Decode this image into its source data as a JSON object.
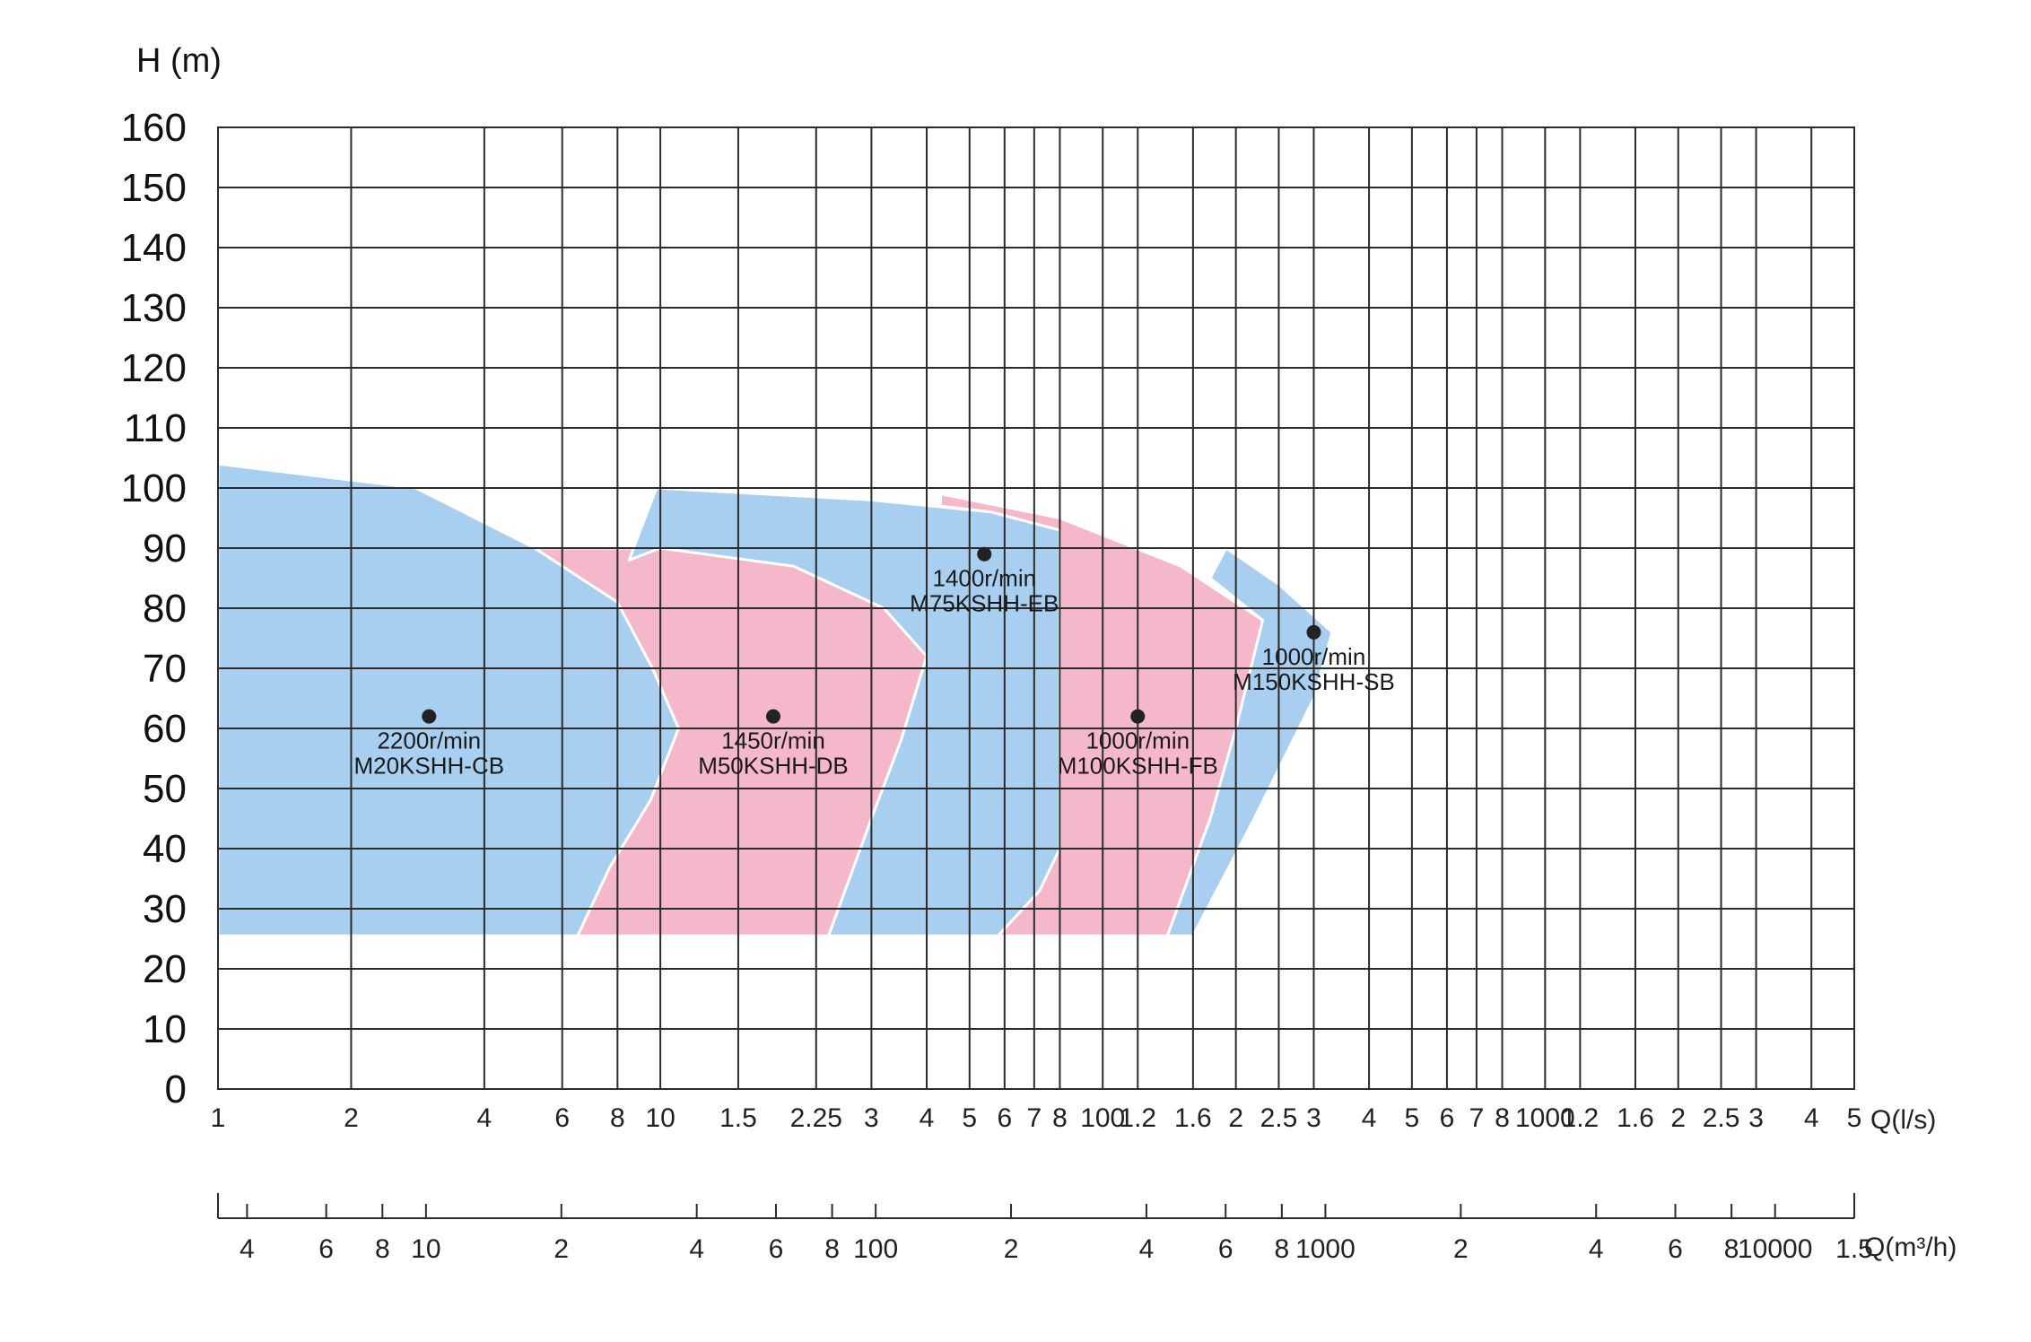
{
  "chart_data": {
    "type": "area",
    "ylabel": "H (m)",
    "ylim": [
      0,
      160
    ],
    "yticks": [
      "0",
      "10",
      "20",
      "30",
      "40",
      "50",
      "60",
      "70",
      "80",
      "90",
      "100",
      "110",
      "120",
      "130",
      "140",
      "150",
      "160"
    ],
    "x_flow_label": "Q(l/s)",
    "x_flow_ticks": [
      "1",
      "2",
      "4",
      "6",
      "8",
      "10",
      "1.5",
      "2.25",
      "3",
      "4",
      "5",
      "6",
      "7",
      "8",
      "100",
      "1.2",
      "1.6",
      "2",
      "2.5",
      "3",
      "4",
      "5",
      "6",
      "7",
      "8",
      "1000",
      "1.2",
      "1.6",
      "2",
      "2.5",
      "3",
      "4",
      "5"
    ],
    "x_flow_values": [
      1,
      2,
      4,
      6,
      8,
      10,
      15,
      22.5,
      30,
      40,
      50,
      60,
      70,
      80,
      100,
      120,
      160,
      200,
      250,
      300,
      400,
      500,
      600,
      700,
      800,
      1000,
      1200,
      1600,
      2000,
      2500,
      3000,
      4000,
      5000
    ],
    "x_hour_label": "Q(m³/h)",
    "x_hour_ticks": [
      "4",
      "6",
      "8",
      "10",
      "2",
      "4",
      "6",
      "8",
      "100",
      "2",
      "4",
      "6",
      "8",
      "1000",
      "2",
      "4",
      "6",
      "8",
      "10000",
      "1.5"
    ],
    "x_hour_values": [
      4,
      6,
      8,
      10,
      20,
      40,
      60,
      80,
      100,
      200,
      400,
      600,
      800,
      1000,
      2000,
      4000,
      6000,
      8000,
      10000,
      15000
    ],
    "series": [
      {
        "speed": "2200r/min",
        "model": "M20KSHH-CB",
        "color": "#a8cfef",
        "point": {
          "x": 3,
          "y": 62
        },
        "outline": [
          [
            1,
            104
          ],
          [
            2.8,
            100
          ],
          [
            5.2,
            90
          ],
          [
            8,
            81
          ],
          [
            9.6,
            70
          ],
          [
            11,
            60
          ],
          [
            9.5,
            48
          ],
          [
            7.7,
            37
          ],
          [
            6.5,
            25.5
          ],
          [
            1,
            25.5
          ]
        ]
      },
      {
        "speed": "1450r/min",
        "model": "M50KSHH-DB",
        "color": "#f4b8ca",
        "point": {
          "x": 18,
          "y": 62
        },
        "outline": [
          [
            5.2,
            90
          ],
          [
            10,
            90
          ],
          [
            20,
            87
          ],
          [
            32,
            80
          ],
          [
            40,
            72
          ],
          [
            35,
            58
          ],
          [
            30,
            45
          ],
          [
            24,
            25.5
          ],
          [
            6.5,
            25.5
          ],
          [
            7.7,
            37
          ],
          [
            9.5,
            48
          ],
          [
            11,
            60
          ],
          [
            9.6,
            70
          ],
          [
            8,
            81
          ]
        ]
      },
      {
        "speed": "1400r/min",
        "model": "M75KSHH-EB",
        "color": "#a8cfef",
        "point": {
          "x": 54,
          "y": 89
        },
        "outline": [
          [
            8.5,
            88
          ],
          [
            9.8,
            100
          ],
          [
            30,
            98
          ],
          [
            56,
            96
          ],
          [
            80,
            93
          ],
          [
            80,
            40
          ],
          [
            72,
            33
          ],
          [
            58,
            25.5
          ],
          [
            24,
            25.5
          ],
          [
            30,
            45
          ],
          [
            35,
            58
          ],
          [
            40,
            72
          ],
          [
            32,
            80
          ],
          [
            20,
            87
          ],
          [
            10,
            90
          ]
        ]
      },
      {
        "speed": "1000r/min",
        "model": "M100KSHH-FB",
        "color": "#f4b8ca",
        "point": {
          "x": 120,
          "y": 62
        },
        "outline": [
          [
            43,
            99
          ],
          [
            80,
            95
          ],
          [
            150,
            87
          ],
          [
            230,
            78
          ],
          [
            200,
            60
          ],
          [
            175,
            45
          ],
          [
            140,
            25.5
          ],
          [
            58,
            25.5
          ],
          [
            72,
            33
          ],
          [
            80,
            40
          ],
          [
            80,
            93
          ],
          [
            56,
            96
          ],
          [
            43,
            97
          ]
        ]
      },
      {
        "speed": "1000r/min",
        "model": "M150KSHH-SB",
        "color": "#a8cfef",
        "point": {
          "x": 300,
          "y": 76
        },
        "outline": [
          [
            175,
            85
          ],
          [
            190,
            90
          ],
          [
            250,
            84
          ],
          [
            330,
            76
          ],
          [
            300,
            65
          ],
          [
            220,
            45
          ],
          [
            160,
            25.5
          ],
          [
            140,
            25.5
          ],
          [
            175,
            45
          ],
          [
            200,
            60
          ],
          [
            230,
            78
          ]
        ]
      }
    ]
  }
}
